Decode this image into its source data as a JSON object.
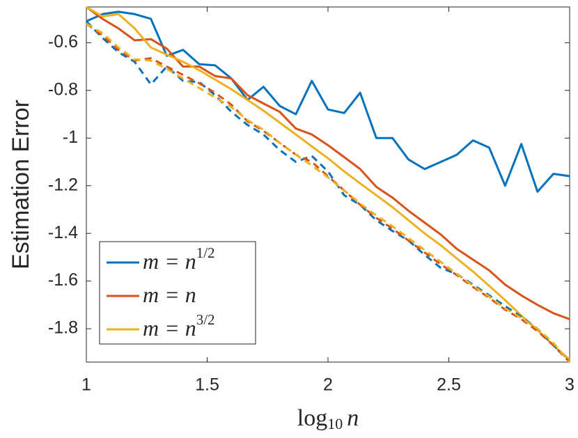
{
  "chart_data": {
    "type": "line",
    "ylabel": "Estimation Error",
    "xlabel": {
      "text": "log",
      "sub": "10",
      "var": "n"
    },
    "x": [
      1,
      1.067,
      1.133,
      1.2,
      1.267,
      1.333,
      1.4,
      1.467,
      1.533,
      1.6,
      1.667,
      1.733,
      1.8,
      1.867,
      1.933,
      2,
      2.067,
      2.133,
      2.2,
      2.267,
      2.333,
      2.4,
      2.467,
      2.533,
      2.6,
      2.667,
      2.733,
      2.8,
      2.867,
      2.933,
      3
    ],
    "xlim": [
      1,
      3
    ],
    "xticks": [
      1,
      1.5,
      2,
      2.5,
      3
    ],
    "ylim": [
      -1.94,
      -0.45
    ],
    "yticks": [
      -0.6,
      -0.8,
      -1,
      -1.2,
      -1.4,
      -1.6,
      -1.8
    ],
    "grid": false,
    "legend": "lower-left",
    "series": [
      {
        "name": "m = n",
        "exponent": "1/2",
        "color": "#0072BD",
        "dashed": false,
        "values": [
          -0.51,
          -0.48,
          -0.47,
          -0.48,
          -0.5,
          -0.655,
          -0.63,
          -0.69,
          -0.695,
          -0.75,
          -0.84,
          -0.785,
          -0.865,
          -0.9,
          -0.76,
          -0.88,
          -0.895,
          -0.81,
          -1.0,
          -1.0,
          -1.09,
          -1.13,
          -1.1,
          -1.07,
          -1.01,
          -1.04,
          -1.2,
          -1.025,
          -1.225,
          -1.15,
          -1.16
        ]
      },
      {
        "name": "m = n",
        "color": "#D95319",
        "dashed": false,
        "values": [
          -0.45,
          -0.5,
          -0.54,
          -0.59,
          -0.585,
          -0.625,
          -0.7,
          -0.7,
          -0.74,
          -0.75,
          -0.82,
          -0.855,
          -0.89,
          -0.96,
          -0.985,
          -1.03,
          -1.08,
          -1.13,
          -1.205,
          -1.25,
          -1.305,
          -1.355,
          -1.405,
          -1.465,
          -1.51,
          -1.555,
          -1.615,
          -1.66,
          -1.7,
          -1.735,
          -1.76
        ]
      },
      {
        "name": "m = n",
        "exponent": "3/2",
        "color": "#EDB120",
        "dashed": false,
        "values": [
          -0.45,
          -0.49,
          -0.48,
          -0.54,
          -0.62,
          -0.65,
          -0.68,
          -0.715,
          -0.755,
          -0.795,
          -0.84,
          -0.885,
          -0.935,
          -0.985,
          -1.035,
          -1.085,
          -1.14,
          -1.19,
          -1.24,
          -1.29,
          -1.345,
          -1.4,
          -1.45,
          -1.505,
          -1.56,
          -1.62,
          -1.68,
          -1.745,
          -1.805,
          -1.87,
          -1.93
        ]
      },
      {
        "color": "#0072BD",
        "dashed": true,
        "values": [
          -0.51,
          -0.58,
          -0.64,
          -0.68,
          -0.775,
          -0.7,
          -0.76,
          -0.765,
          -0.82,
          -0.89,
          -0.945,
          -0.985,
          -1.05,
          -1.1,
          -1.075,
          -1.14,
          -1.24,
          -1.28,
          -1.345,
          -1.39,
          -1.43,
          -1.49,
          -1.545,
          -1.57,
          -1.615,
          -1.66,
          -1.705,
          -1.75,
          -1.8,
          -1.87,
          -1.935
        ]
      },
      {
        "color": "#D95319",
        "dashed": true,
        "values": [
          -0.52,
          -0.57,
          -0.63,
          -0.675,
          -0.665,
          -0.7,
          -0.735,
          -0.77,
          -0.81,
          -0.86,
          -0.93,
          -0.97,
          -1.02,
          -1.07,
          -1.1,
          -1.16,
          -1.22,
          -1.28,
          -1.335,
          -1.38,
          -1.43,
          -1.48,
          -1.53,
          -1.575,
          -1.625,
          -1.67,
          -1.72,
          -1.76,
          -1.81,
          -1.87,
          -1.94
        ]
      },
      {
        "color": "#EDB120",
        "dashed": true,
        "values": [
          -0.52,
          -0.56,
          -0.62,
          -0.67,
          -0.675,
          -0.71,
          -0.75,
          -0.79,
          -0.83,
          -0.87,
          -0.925,
          -0.965,
          -1.02,
          -1.07,
          -1.115,
          -1.165,
          -1.22,
          -1.275,
          -1.325,
          -1.37,
          -1.42,
          -1.47,
          -1.52,
          -1.57,
          -1.62,
          -1.665,
          -1.715,
          -1.755,
          -1.8,
          -1.86,
          -1.94
        ]
      }
    ]
  }
}
